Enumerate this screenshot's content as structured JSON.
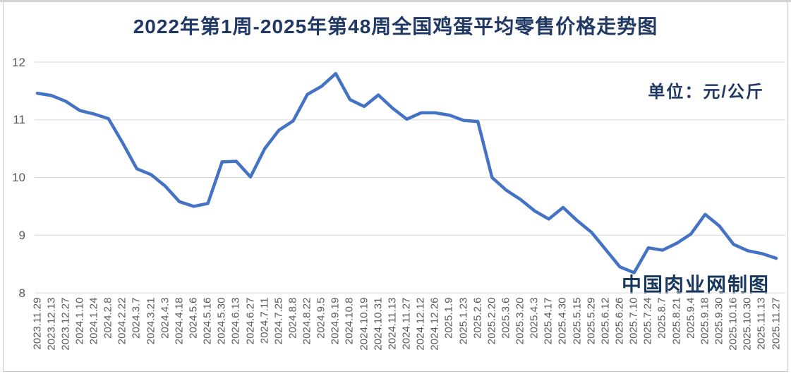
{
  "title": "2022年第1周-2025年第48周全国鸡蛋平均零售价格走势图",
  "unit_label": "单位：元/公斤",
  "watermark": "中国肉业网制图",
  "colors": {
    "line": "#4472C4",
    "title_text": "#1F3864",
    "unit_text": "#1F3864",
    "watermark_text": "#17375E",
    "axis_text": "#595959",
    "gridline": "#D9D9D9",
    "frame": "#C9C9C9"
  },
  "chart_data": {
    "type": "line",
    "title": "2022年第1周-2025年第48周全国鸡蛋平均零售价格走势图",
    "xlabel": "",
    "ylabel": "",
    "unit": "元/公斤",
    "ylim": [
      8,
      12
    ],
    "yticks": [
      8,
      9,
      10,
      11,
      12
    ],
    "grid": "horizontal",
    "legend_position": "none",
    "series_name": "全国鸡蛋平均零售价格",
    "categories": [
      "2023.11.29",
      "2023.12.13",
      "2023.12.27",
      "2024.1.10",
      "2024.1.24",
      "2024.2.8",
      "2024.2.22",
      "2024.3.7",
      "2024.3.21",
      "2024.4.3",
      "2024.4.18",
      "2024.5.6",
      "2024.5.16",
      "2024.5.30",
      "2024.6.13",
      "2024.6.27",
      "2024.7.11",
      "2024.7.25",
      "2024.8.8",
      "2024.8.22",
      "2024.9.5",
      "2024.9.19",
      "2024.10.8",
      "2024.10.19",
      "2024.10.31",
      "2024.11.13",
      "2024.11.27",
      "2024.12.12",
      "2024.12.26",
      "2025.1.9",
      "2025.1.23",
      "2025.2.6",
      "2025.2.20",
      "2025.3.6",
      "2025.3.20",
      "2025.4.3",
      "2025.4.17",
      "2025.4.30",
      "2025.5.15",
      "2025.5.29",
      "2025.6.12",
      "2025.6.26",
      "2025.7.10",
      "2025.7.24",
      "2025.8.7",
      "2025.8.21",
      "2025.9.4",
      "2025.9.18",
      "2025.9.30",
      "2025.10.16",
      "2025.10.30",
      "2025.11.13",
      "2025.11.27"
    ],
    "values": [
      11.46,
      11.42,
      11.32,
      11.16,
      11.1,
      11.02,
      10.6,
      10.15,
      10.05,
      9.85,
      9.58,
      9.5,
      9.55,
      10.27,
      10.28,
      10.01,
      10.5,
      10.82,
      10.98,
      11.44,
      11.58,
      11.8,
      11.35,
      11.23,
      11.43,
      11.2,
      11.01,
      11.12,
      11.12,
      11.08,
      10.99,
      10.97,
      10.0,
      9.78,
      9.62,
      9.42,
      9.28,
      9.48,
      9.25,
      9.05,
      8.75,
      8.45,
      8.35,
      8.78,
      8.74,
      8.86,
      9.02,
      9.36,
      9.16,
      8.84,
      8.73,
      8.68,
      8.6
    ]
  }
}
